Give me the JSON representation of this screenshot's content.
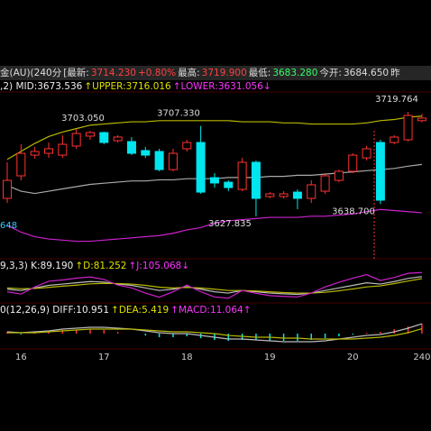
{
  "header": {
    "items": [
      {
        "text": "金(AU)(240分",
        "color": "#dddddd"
      },
      {
        "text": "[最新:",
        "color": "#dddddd"
      },
      {
        "text": "3714.230",
        "color": "#ff4040"
      },
      {
        "text": "+0.80%",
        "color": "#ff4040"
      },
      {
        "text": "最高:",
        "color": "#dddddd"
      },
      {
        "text": "3719.900",
        "color": "#ff4040"
      },
      {
        "text": "最低:",
        "color": "#dddddd"
      },
      {
        "text": "3683.280",
        "color": "#33ff66"
      },
      {
        "text": "今开:",
        "color": "#dddddd"
      },
      {
        "text": "3684.650",
        "color": "#dddddd"
      },
      {
        "text": "昨",
        "color": "#dddddd"
      }
    ]
  },
  "chart_data": [
    {
      "type": "candlestick",
      "legend": [
        {
          "text": ",2) MID:3673.536",
          "color": "#eeeeee"
        },
        {
          "text": "↑UPPER:3716.016",
          "color": "#e0e000"
        },
        {
          "text": "↑LOWER:3631.056↓",
          "color": "#ff33ff"
        }
      ],
      "categories": [
        null,
        "16",
        null,
        null,
        null,
        null,
        null,
        "17",
        null,
        null,
        null,
        null,
        null,
        "18",
        null,
        null,
        null,
        null,
        null,
        "19",
        null,
        null,
        null,
        null,
        null,
        "20",
        null,
        null,
        null,
        null,
        "240"
      ],
      "open": [
        3643.7,
        3663.5,
        3681.7,
        3683.3,
        3681.7,
        3689.7,
        3698.4,
        3701.5,
        3694.4,
        3693.6,
        3685.7,
        3684.9,
        3669.0,
        3687.3,
        3692.8,
        3661.9,
        3657.9,
        3651.6,
        3675.4,
        3645.3,
        3645.3,
        3649.2,
        3643.7,
        3650.0,
        3659.5,
        3667.5,
        3679.3,
        3692.8,
        3692.8,
        3695.2,
        3712.0
      ],
      "high": [
        3675.4,
        3691.2,
        3688.9,
        3692.8,
        3699.2,
        3704.7,
        3703.05,
        3702.3,
        3699.2,
        3697.6,
        3688.9,
        3687.3,
        3687.3,
        3695.2,
        3707.33,
        3665.9,
        3659.5,
        3679.3,
        3676.9,
        3649.2,
        3650.0,
        3651.6,
        3659.5,
        3665.9,
        3669.0,
        3683.3,
        3689.7,
        3695.2,
        3699.2,
        3719.764,
        3718.0
      ],
      "low": [
        3639.7,
        3659.5,
        3678.5,
        3679.3,
        3679.3,
        3687.3,
        3695.2,
        3691.2,
        3692.8,
        3681.7,
        3679.3,
        3667.5,
        3667.5,
        3684.9,
        3647.7,
        3653.2,
        3650.0,
        3650.0,
        3627.835,
        3643.7,
        3643.7,
        3634.2,
        3639.7,
        3647.7,
        3657.9,
        3665.9,
        3677.0,
        3638.7,
        3691.2,
        3693.6,
        3710.5
      ],
      "close": [
        3659.5,
        3683.3,
        3684.9,
        3687.3,
        3691.2,
        3700.7,
        3701.5,
        3692.8,
        3697.6,
        3683.3,
        3681.7,
        3669.0,
        3683.3,
        3692.8,
        3649.2,
        3657.2,
        3653.2,
        3675.4,
        3643.7,
        3647.7,
        3647.7,
        3643.7,
        3655.6,
        3663.5,
        3667.5,
        3681.7,
        3687.3,
        3642.1,
        3697.6,
        3716.6,
        3714.23
      ],
      "up_color": "#ff3232",
      "down_color": "#00e5ee",
      "series": [
        {
          "name": "UPPER",
          "color": "#b8b800",
          "values": [
            3678,
            3685,
            3692,
            3698,
            3702,
            3705,
            3708,
            3709,
            3710,
            3711,
            3711,
            3712,
            3712,
            3712,
            3712,
            3712,
            3712,
            3711,
            3711,
            3711,
            3710,
            3710,
            3709,
            3709,
            3709,
            3709,
            3710,
            3712,
            3713,
            3715,
            3716.016
          ]
        },
        {
          "name": "MID",
          "color": "#aaaaaa",
          "values": [
            3655,
            3650,
            3648,
            3650,
            3652,
            3654,
            3656,
            3657,
            3658,
            3659,
            3659,
            3660,
            3660,
            3661,
            3661,
            3661,
            3662,
            3662,
            3662,
            3663,
            3663,
            3664,
            3664,
            3665,
            3666,
            3667,
            3668,
            3669,
            3670,
            3672,
            3673.536
          ]
        },
        {
          "name": "LOWER",
          "color": "#cc22cc",
          "values": [
            3620,
            3614,
            3610,
            3608,
            3607,
            3606,
            3606,
            3607,
            3608,
            3609,
            3610,
            3611,
            3613,
            3616,
            3618,
            3622,
            3624,
            3625,
            3626,
            3627,
            3627,
            3627,
            3628,
            3628,
            3629,
            3630,
            3632,
            3634,
            3633,
            3632,
            3631.056
          ]
        }
      ],
      "annotations": [
        {
          "value": 3703.05,
          "label": "3703.050"
        },
        {
          "value": 3707.33,
          "label": "3707.330"
        },
        {
          "value": 3719.764,
          "label": "3719.764"
        },
        {
          "value": 3627.835,
          "label": "3627.835"
        },
        {
          "value": 3638.7,
          "label": "3638.700"
        }
      ],
      "edge_label": "648",
      "ylim": [
        3592.2,
        3736.4
      ]
    },
    {
      "type": "line",
      "legend": [
        {
          "text": "9,3,3) K:89.190",
          "color": "#eeeeee"
        },
        {
          "text": "↑D:81.252",
          "color": "#e0e000"
        },
        {
          "text": "↑J:105.068↓",
          "color": "#ff33ff"
        }
      ],
      "series": [
        {
          "name": "K",
          "color": "#bbbbbb",
          "values": [
            40,
            35,
            45,
            55,
            60,
            65,
            70,
            68,
            60,
            55,
            45,
            35,
            40,
            50,
            40,
            30,
            25,
            35,
            30,
            25,
            22,
            20,
            25,
            35,
            45,
            55,
            65,
            60,
            70,
            82,
            89.19
          ]
        },
        {
          "name": "D",
          "color": "#b8b800",
          "values": [
            45,
            42,
            43,
            47,
            52,
            56,
            61,
            63,
            62,
            60,
            55,
            48,
            45,
            47,
            45,
            40,
            35,
            35,
            33,
            30,
            27,
            25,
            25,
            28,
            34,
            41,
            49,
            53,
            62,
            72,
            81.252
          ]
        },
        {
          "name": "J",
          "color": "#cc22cc",
          "values": [
            30,
            21,
            49,
            71,
            76,
            83,
            88,
            78,
            56,
            45,
            25,
            9,
            30,
            56,
            30,
            10,
            5,
            35,
            24,
            15,
            12,
            10,
            25,
            49,
            67,
            83,
            97,
            74,
            86,
            102,
            105.068
          ]
        }
      ],
      "ylim": [
        -10,
        120
      ]
    },
    {
      "type": "macd",
      "legend": [
        {
          "text": "0(12,26,9) DIFF:10.951",
          "color": "#eeeeee"
        },
        {
          "text": "↑DEA:5.419",
          "color": "#e0e000"
        },
        {
          "text": "↑MACD:11.064↑",
          "color": "#ff33ff"
        }
      ],
      "values": [
        2,
        -1,
        1,
        3,
        4,
        4,
        5,
        4,
        2,
        0,
        -2,
        -4,
        -4,
        -3,
        -5,
        -7,
        -8,
        -7,
        -7,
        -8,
        -8,
        -8,
        -7,
        -5,
        -3,
        -1,
        1,
        2,
        5,
        8,
        11.064
      ],
      "up_color": "#ff3232",
      "down_color": "#00e5ee",
      "series": [
        {
          "name": "DIFF",
          "color": "#bbbbbb",
          "values": [
            2,
            1,
            2,
            3,
            5,
            6,
            7,
            7,
            6,
            5,
            3,
            1,
            0,
            0,
            -2,
            -4,
            -6,
            -6,
            -7,
            -8,
            -9,
            -9,
            -9,
            -8,
            -6,
            -4,
            -2,
            -1,
            2,
            6,
            10.951
          ]
        },
        {
          "name": "DEA",
          "color": "#b8b800",
          "values": [
            1,
            1,
            1,
            2,
            3,
            4,
            5,
            5,
            5,
            5,
            4,
            3,
            2,
            2,
            1,
            0,
            -2,
            -3,
            -4,
            -4,
            -5,
            -5,
            -6,
            -6,
            -6,
            -6,
            -5,
            -4,
            -2,
            1,
            5.419
          ]
        }
      ],
      "ylim": [
        -20,
        20
      ]
    }
  ]
}
